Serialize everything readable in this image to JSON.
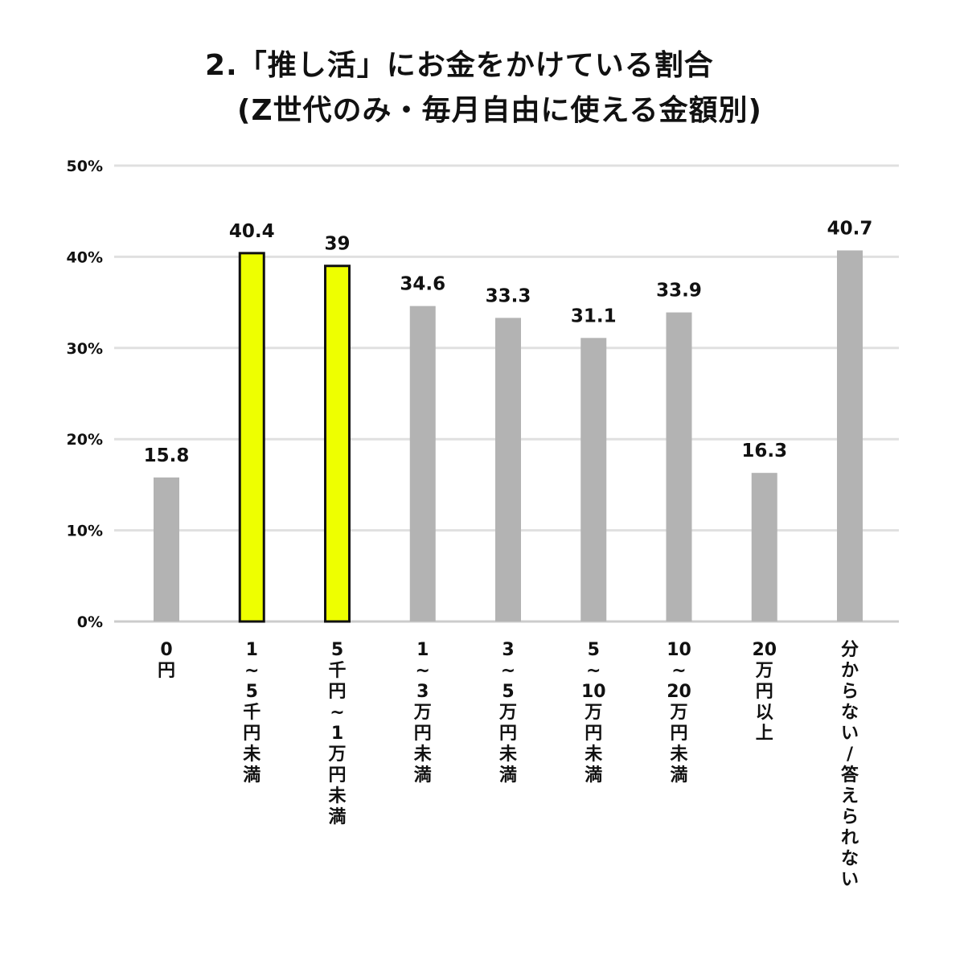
{
  "chart_data": {
    "type": "bar",
    "title_lines": [
      "2.「推し活」にお金をかけている割合",
      "(Z世代のみ・毎月自由に使える金額別)"
    ],
    "categories": [
      "0円",
      "1~5千円未満",
      "5千円~1万円未満",
      "1~3万円未満",
      "3~5万円未満",
      "5~10万円未満",
      "10~20万円未満",
      "20万円以上",
      "分からない/答えられない"
    ],
    "category_labels_vertical": [
      [
        "0",
        "円"
      ],
      [
        "1",
        "~",
        "5",
        "千",
        "円",
        "未",
        "満"
      ],
      [
        "5",
        "千",
        "円",
        "~",
        "1",
        "万",
        "円",
        "未",
        "満"
      ],
      [
        "1",
        "~",
        "3",
        "万",
        "円",
        "未",
        "満"
      ],
      [
        "3",
        "~",
        "5",
        "万",
        "円",
        "未",
        "満"
      ],
      [
        "5",
        "~",
        "10",
        "万",
        "円",
        "未",
        "満"
      ],
      [
        "10",
        "~",
        "20",
        "万",
        "円",
        "未",
        "満"
      ],
      [
        "20",
        "万",
        "円",
        "以",
        "上"
      ],
      [
        "分",
        "か",
        "ら",
        "な",
        "い",
        "/",
        "答",
        "え",
        "ら",
        "れ",
        "な",
        "い"
      ]
    ],
    "values": [
      15.8,
      40.4,
      39,
      34.6,
      33.3,
      31.1,
      33.9,
      16.3,
      40.7
    ],
    "value_labels": [
      "15.8",
      "40.4",
      "39",
      "34.6",
      "33.3",
      "31.1",
      "33.9",
      "16.3",
      "40.7"
    ],
    "highlighted": [
      false,
      true,
      true,
      false,
      false,
      false,
      false,
      false,
      false
    ],
    "y_ticks": [
      0,
      10,
      20,
      30,
      40,
      50
    ],
    "y_tick_labels": [
      "0%",
      "10%",
      "20%",
      "30%",
      "40%",
      "50%"
    ],
    "ylim": [
      0,
      50
    ],
    "grid": true,
    "xlabel": "",
    "ylabel": "",
    "colors": {
      "bar": "#b3b3b3",
      "highlight": "#eeff00",
      "highlight_border": "#111111",
      "grid": "#e0e0e0",
      "axis": "#cccccc",
      "text": "#111111"
    }
  }
}
